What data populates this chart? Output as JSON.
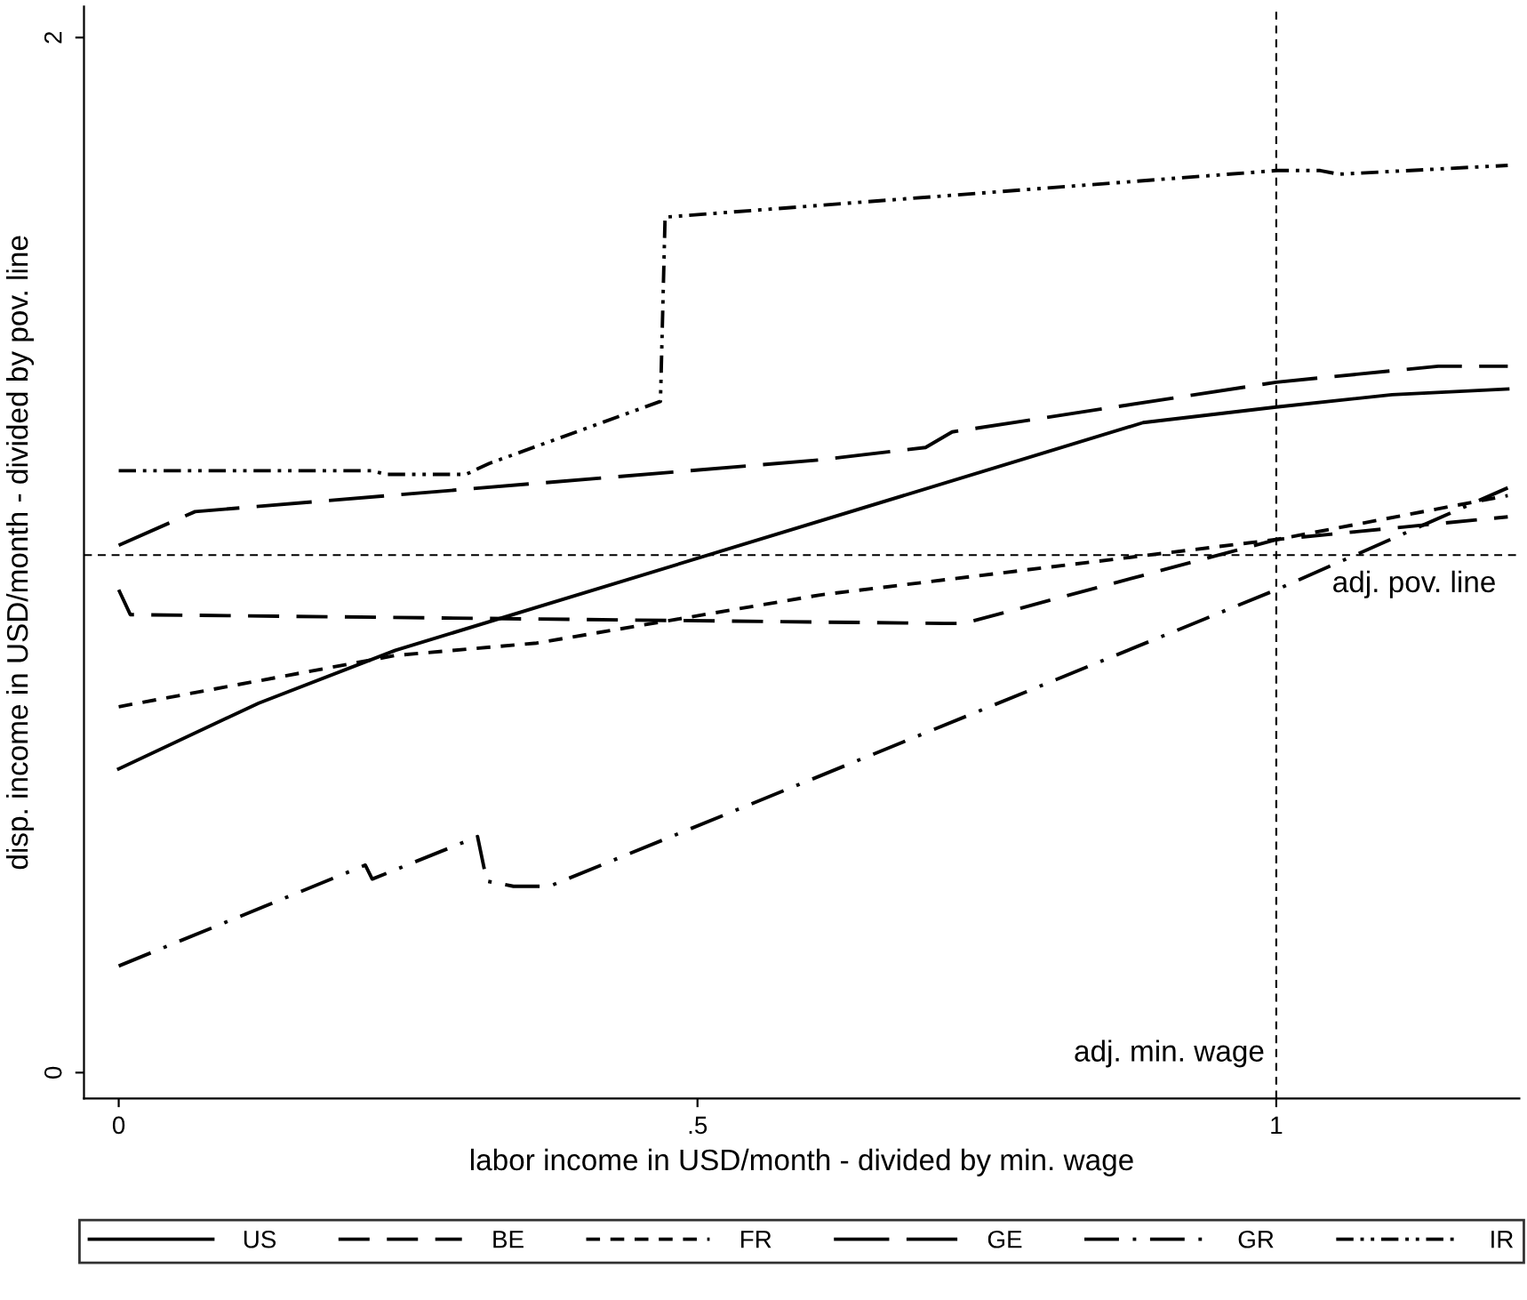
{
  "chart_data": {
    "type": "line",
    "xlabel": "labor income in USD/month - divided by min. wage",
    "ylabel": "disp. income in USD/month - divided by pov. line",
    "xlim": [
      -0.03,
      1.21
    ],
    "ylim": [
      -0.05,
      2.06
    ],
    "xticks": [
      0,
      {
        "value": 0.5,
        "label": ".5"
      },
      1
    ],
    "yticks": [
      0,
      2
    ],
    "grid": false,
    "legend": "bottom",
    "marker": "none",
    "ref_lines": [
      {
        "axis": "y",
        "value": 1,
        "label": "adj. pov. line",
        "color": "#000000",
        "line_style": "dashed"
      },
      {
        "axis": "x",
        "value": 1,
        "label": "adj. min. wage",
        "color": "#000000",
        "line_style": "dashed"
      }
    ],
    "series": [
      {
        "name": "US",
        "color": "#000000",
        "line_style": "solid",
        "x": [
          0,
          0.121,
          0.239,
          0.885,
          1.0,
          1.1,
          1.2
        ],
        "values": [
          0.587,
          0.714,
          0.816,
          1.256,
          1.286,
          1.31,
          1.321
        ]
      },
      {
        "name": "BE",
        "color": "#000000",
        "line_style": "dashed",
        "x": [
          0,
          0.01,
          0.713,
          0.73,
          1.0,
          1.2
        ],
        "values": [
          0.933,
          0.885,
          0.868,
          0.868,
          1.03,
          1.074
        ]
      },
      {
        "name": "FR",
        "color": "#000000",
        "line_style": "dotted",
        "x": [
          0,
          0.239,
          0.361,
          0.606,
          1.0,
          1.2
        ],
        "values": [
          0.707,
          0.806,
          0.83,
          0.923,
          1.03,
          1.115
        ]
      },
      {
        "name": "GE",
        "color": "#000000",
        "line_style": "longdash",
        "x": [
          0,
          0.066,
          0.606,
          0.697,
          0.72,
          1.0,
          1.14,
          1.2
        ],
        "values": [
          1.019,
          1.084,
          1.184,
          1.208,
          1.238,
          1.334,
          1.365,
          1.365
        ]
      },
      {
        "name": "GR",
        "color": "#000000",
        "line_style": "dashdot",
        "x": [
          0,
          0.213,
          0.219,
          0.31,
          0.318,
          0.341,
          0.372,
          1.0,
          1.2
        ],
        "values": [
          0.206,
          0.401,
          0.374,
          0.456,
          0.37,
          0.36,
          0.36,
          0.933,
          1.13
        ]
      },
      {
        "name": "IR",
        "color": "#000000",
        "line_style": "dashdotdot",
        "x": [
          0,
          0.219,
          0.231,
          0.3,
          0.32,
          0.468,
          0.472,
          1.0,
          1.038,
          1.054,
          1.2
        ],
        "values": [
          1.163,
          1.163,
          1.156,
          1.156,
          1.177,
          1.297,
          1.653,
          1.743,
          1.743,
          1.736,
          1.753
        ]
      }
    ]
  }
}
